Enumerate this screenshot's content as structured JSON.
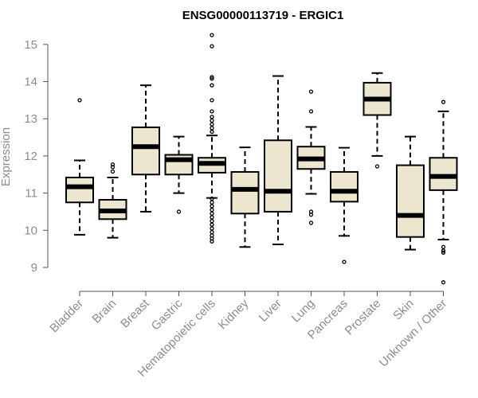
{
  "chart_data": {
    "type": "boxplot",
    "title": "ENSG00000113719 - ERGIC1",
    "ylabel": "Expression",
    "xlabel": "",
    "ylim": [
      8.5,
      15.5
    ],
    "yticks": [
      9,
      10,
      11,
      12,
      13,
      14,
      15
    ],
    "box_fill": "#ede6cf",
    "categories": [
      "Bladder",
      "Brain",
      "Breast",
      "Gastric",
      "Hematopoietic cells",
      "Kidney",
      "Liver",
      "Lung",
      "Pancreas",
      "Prostate",
      "Skin",
      "Unknown / Other"
    ],
    "boxes": [
      {
        "category": "Bladder",
        "whisker_low": 9.88,
        "q1": 10.75,
        "median": 11.17,
        "q3": 11.42,
        "whisker_high": 11.88,
        "outliers": [
          13.5
        ]
      },
      {
        "category": "Brain",
        "whisker_low": 9.8,
        "q1": 10.3,
        "median": 10.52,
        "q3": 10.82,
        "whisker_high": 11.42,
        "outliers": [
          11.58,
          11.7,
          11.77
        ]
      },
      {
        "category": "Breast",
        "whisker_low": 10.5,
        "q1": 11.5,
        "median": 12.25,
        "q3": 12.77,
        "whisker_high": 13.9,
        "outliers": []
      },
      {
        "category": "Gastric",
        "whisker_low": 11.0,
        "q1": 11.5,
        "median": 11.9,
        "q3": 12.03,
        "whisker_high": 12.52,
        "outliers": [
          10.5
        ]
      },
      {
        "category": "Hematopoietic cells",
        "whisker_low": 10.87,
        "q1": 11.55,
        "median": 11.8,
        "q3": 11.95,
        "whisker_high": 12.55,
        "outliers": [
          9.7,
          9.78,
          9.86,
          9.95,
          10.05,
          10.15,
          10.25,
          10.35,
          10.45,
          10.55,
          10.65,
          10.75,
          10.85,
          12.65,
          12.75,
          12.85,
          12.95,
          13.05,
          13.2,
          13.5,
          13.9,
          14.08,
          14.12,
          14.95,
          15.25
        ]
      },
      {
        "category": "Kidney",
        "whisker_low": 9.55,
        "q1": 10.45,
        "median": 11.1,
        "q3": 11.57,
        "whisker_high": 12.23,
        "outliers": []
      },
      {
        "category": "Liver",
        "whisker_low": 9.62,
        "q1": 10.5,
        "median": 11.05,
        "q3": 12.42,
        "whisker_high": 14.15,
        "outliers": []
      },
      {
        "category": "Lung",
        "whisker_low": 10.98,
        "q1": 11.65,
        "median": 11.92,
        "q3": 12.25,
        "whisker_high": 12.78,
        "outliers": [
          10.2,
          10.42,
          10.5,
          13.2,
          13.73
        ]
      },
      {
        "category": "Pancreas",
        "whisker_low": 9.85,
        "q1": 10.77,
        "median": 11.05,
        "q3": 11.57,
        "whisker_high": 12.22,
        "outliers": [
          9.15
        ]
      },
      {
        "category": "Prostate",
        "whisker_low": 12.0,
        "q1": 13.1,
        "median": 13.53,
        "q3": 13.97,
        "whisker_high": 14.23,
        "outliers": [
          11.72
        ]
      },
      {
        "category": "Skin",
        "whisker_low": 9.48,
        "q1": 9.82,
        "median": 10.4,
        "q3": 11.75,
        "whisker_high": 12.52,
        "outliers": []
      },
      {
        "category": "Unknown / Other",
        "whisker_low": 9.75,
        "q1": 11.08,
        "median": 11.45,
        "q3": 11.95,
        "whisker_high": 13.2,
        "outliers": [
          8.6,
          9.4,
          9.45,
          9.55,
          13.45
        ]
      }
    ]
  }
}
